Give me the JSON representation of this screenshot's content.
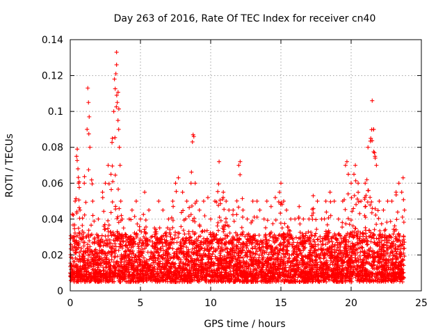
{
  "chart_data": {
    "type": "scatter",
    "title": "Day 263 of 2016, Rate Of TEC Index for receiver cn40",
    "xlabel": "GPS time / hours",
    "ylabel": "ROTI / TECUs",
    "xlim": [
      0,
      25
    ],
    "ylim": [
      0,
      0.14
    ],
    "xticks": [
      0,
      5,
      10,
      15,
      20,
      25
    ],
    "xtick_labels": [
      "0",
      "5",
      "10",
      "15",
      "20",
      "25"
    ],
    "yticks": [
      0,
      0.02,
      0.04,
      0.06,
      0.08,
      0.1,
      0.12,
      0.14
    ],
    "ytick_labels": [
      "0",
      "0.02",
      "0.04",
      "0.06",
      "0.08",
      "0.1",
      "0.12",
      "0.14"
    ],
    "grid": true,
    "marker": "+",
    "color": "#ff0000",
    "series": [
      {
        "name": "ROTI",
        "x": [
          0.0,
          0.2,
          0.35,
          0.45,
          0.5,
          0.55,
          0.6,
          0.7,
          1.0,
          1.2,
          1.25,
          1.3,
          1.35,
          1.4,
          1.6,
          2.0,
          2.3,
          2.5,
          2.7,
          2.9,
          3.0,
          3.1,
          3.15,
          3.25,
          3.3,
          3.35,
          3.4,
          3.45,
          3.5,
          3.55,
          3.6,
          3.7,
          3.8,
          4.0,
          4.2,
          4.4,
          4.7,
          5.0,
          5.3,
          5.6,
          6.0,
          6.3,
          6.6,
          7.0,
          7.3,
          7.5,
          7.7,
          8.0,
          8.3,
          8.6,
          8.7,
          8.75,
          8.8,
          8.9,
          9.0,
          9.2,
          9.5,
          9.8,
          10.0,
          10.3,
          10.6,
          10.9,
          11.1,
          11.3,
          11.6,
          12.0,
          12.1,
          12.3,
          12.6,
          13.0,
          13.3,
          13.5,
          13.8,
          14.0,
          14.3,
          14.6,
          14.9,
          15.0,
          15.2,
          15.4,
          15.7,
          16.0,
          16.3,
          16.6,
          17.0,
          17.3,
          17.6,
          17.9,
          18.2,
          18.5,
          18.8,
          19.1,
          19.4,
          19.6,
          19.7,
          19.8,
          20.0,
          20.2,
          20.3,
          20.5,
          20.7,
          21.0,
          21.2,
          21.4,
          21.5,
          21.6,
          21.7,
          21.8,
          22.0,
          22.3,
          22.6,
          22.9,
          23.2,
          23.4,
          23.6,
          23.7,
          23.8
        ],
        "y": [
          0.01,
          0.03,
          0.05,
          0.075,
          0.079,
          0.068,
          0.06,
          0.045,
          0.06,
          0.09,
          0.113,
          0.105,
          0.097,
          0.08,
          0.05,
          0.04,
          0.055,
          0.06,
          0.07,
          0.065,
          0.085,
          0.1,
          0.118,
          0.121,
          0.133,
          0.105,
          0.095,
          0.09,
          0.08,
          0.07,
          0.05,
          0.04,
          0.035,
          0.03,
          0.04,
          0.045,
          0.05,
          0.04,
          0.055,
          0.045,
          0.035,
          0.05,
          0.045,
          0.04,
          0.05,
          0.06,
          0.063,
          0.055,
          0.05,
          0.06,
          0.083,
          0.087,
          0.086,
          0.06,
          0.05,
          0.045,
          0.05,
          0.052,
          0.04,
          0.05,
          0.072,
          0.055,
          0.05,
          0.045,
          0.045,
          0.07,
          0.072,
          0.045,
          0.04,
          0.05,
          0.05,
          0.045,
          0.04,
          0.05,
          0.047,
          0.052,
          0.055,
          0.06,
          0.05,
          0.045,
          0.04,
          0.04,
          0.047,
          0.04,
          0.04,
          0.053,
          0.05,
          0.04,
          0.05,
          0.055,
          0.05,
          0.04,
          0.05,
          0.07,
          0.072,
          0.065,
          0.06,
          0.065,
          0.07,
          0.06,
          0.05,
          0.06,
          0.08,
          0.085,
          0.106,
          0.09,
          0.075,
          0.07,
          0.05,
          0.045,
          0.05,
          0.05,
          0.055,
          0.06,
          0.055,
          0.063,
          0.045
        ],
        "baseline_range": [
          0.005,
          0.03
        ]
      }
    ]
  }
}
